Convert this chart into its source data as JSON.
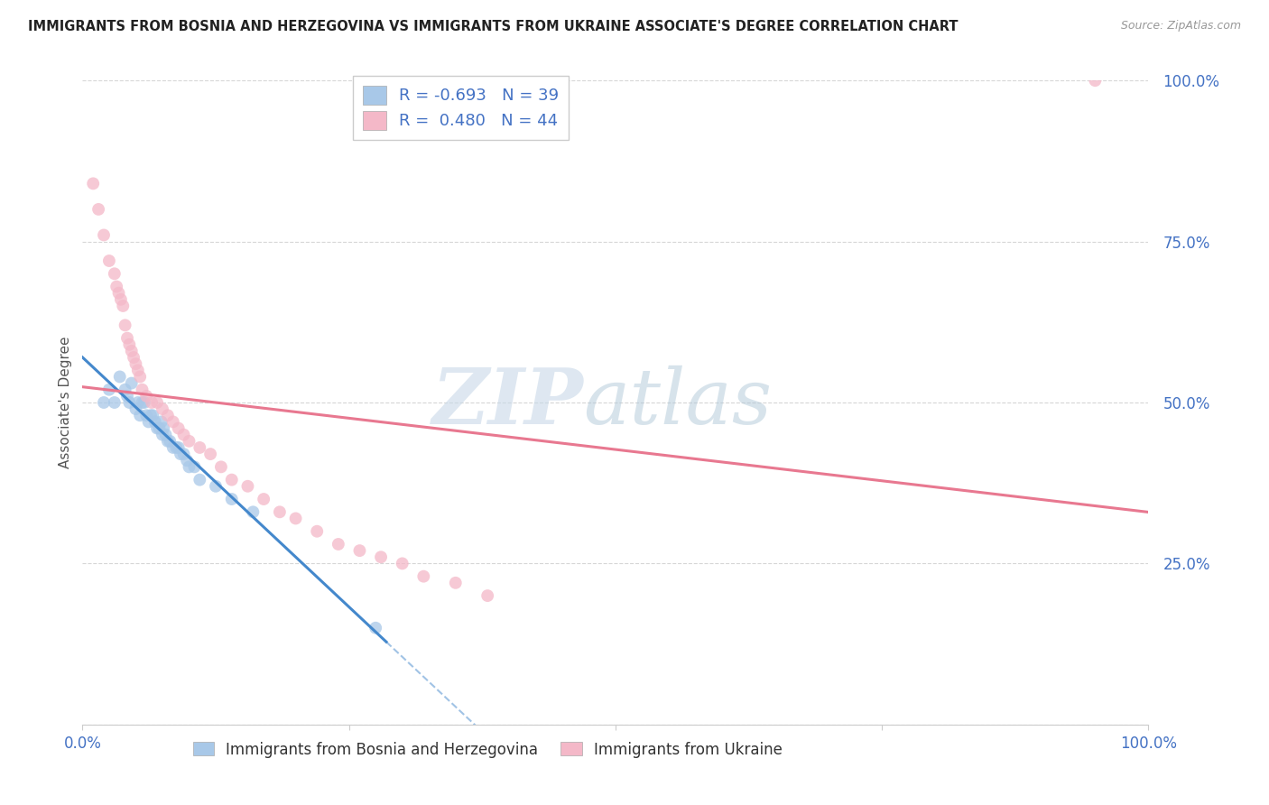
{
  "title": "IMMIGRANTS FROM BOSNIA AND HERZEGOVINA VS IMMIGRANTS FROM UKRAINE ASSOCIATE'S DEGREE CORRELATION CHART",
  "source": "Source: ZipAtlas.com",
  "ylabel": "Associate's Degree",
  "r_blue": -0.693,
  "n_blue": 39,
  "r_pink": 0.48,
  "n_pink": 44,
  "blue_color": "#a8c8e8",
  "pink_color": "#f4b8c8",
  "blue_line_color": "#4488cc",
  "pink_line_color": "#e87890",
  "legend_blue_label": "Immigrants from Bosnia and Herzegovina",
  "legend_pink_label": "Immigrants from Ukraine",
  "watermark_zip": "ZIP",
  "watermark_atlas": "atlas",
  "background_color": "#ffffff",
  "grid_color": "#cccccc",
  "xlim": [
    0.0,
    1.0
  ],
  "ylim": [
    0.0,
    1.0
  ],
  "blue_scatter_x": [
    0.02,
    0.025,
    0.03,
    0.035,
    0.04,
    0.042,
    0.044,
    0.046,
    0.05,
    0.052,
    0.054,
    0.056,
    0.058,
    0.06,
    0.062,
    0.064,
    0.066,
    0.068,
    0.07,
    0.072,
    0.074,
    0.075,
    0.076,
    0.078,
    0.08,
    0.082,
    0.085,
    0.088,
    0.09,
    0.092,
    0.095,
    0.098,
    0.1,
    0.105,
    0.11,
    0.125,
    0.14,
    0.16,
    0.275
  ],
  "blue_scatter_y": [
    0.5,
    0.52,
    0.5,
    0.54,
    0.52,
    0.51,
    0.5,
    0.53,
    0.49,
    0.5,
    0.48,
    0.5,
    0.5,
    0.48,
    0.47,
    0.48,
    0.48,
    0.47,
    0.46,
    0.46,
    0.47,
    0.45,
    0.46,
    0.45,
    0.44,
    0.44,
    0.43,
    0.43,
    0.43,
    0.42,
    0.42,
    0.41,
    0.4,
    0.4,
    0.38,
    0.37,
    0.35,
    0.33,
    0.15
  ],
  "pink_scatter_x": [
    0.01,
    0.015,
    0.02,
    0.025,
    0.03,
    0.032,
    0.034,
    0.036,
    0.038,
    0.04,
    0.042,
    0.044,
    0.046,
    0.048,
    0.05,
    0.052,
    0.054,
    0.056,
    0.06,
    0.065,
    0.07,
    0.075,
    0.08,
    0.085,
    0.09,
    0.095,
    0.1,
    0.11,
    0.12,
    0.13,
    0.14,
    0.155,
    0.17,
    0.185,
    0.2,
    0.22,
    0.24,
    0.26,
    0.28,
    0.3,
    0.32,
    0.35,
    0.38,
    0.95
  ],
  "pink_scatter_y": [
    0.84,
    0.8,
    0.76,
    0.72,
    0.7,
    0.68,
    0.67,
    0.66,
    0.65,
    0.62,
    0.6,
    0.59,
    0.58,
    0.57,
    0.56,
    0.55,
    0.54,
    0.52,
    0.51,
    0.5,
    0.5,
    0.49,
    0.48,
    0.47,
    0.46,
    0.45,
    0.44,
    0.43,
    0.42,
    0.4,
    0.38,
    0.37,
    0.35,
    0.33,
    0.32,
    0.3,
    0.28,
    0.27,
    0.26,
    0.25,
    0.23,
    0.22,
    0.2,
    1.0
  ]
}
